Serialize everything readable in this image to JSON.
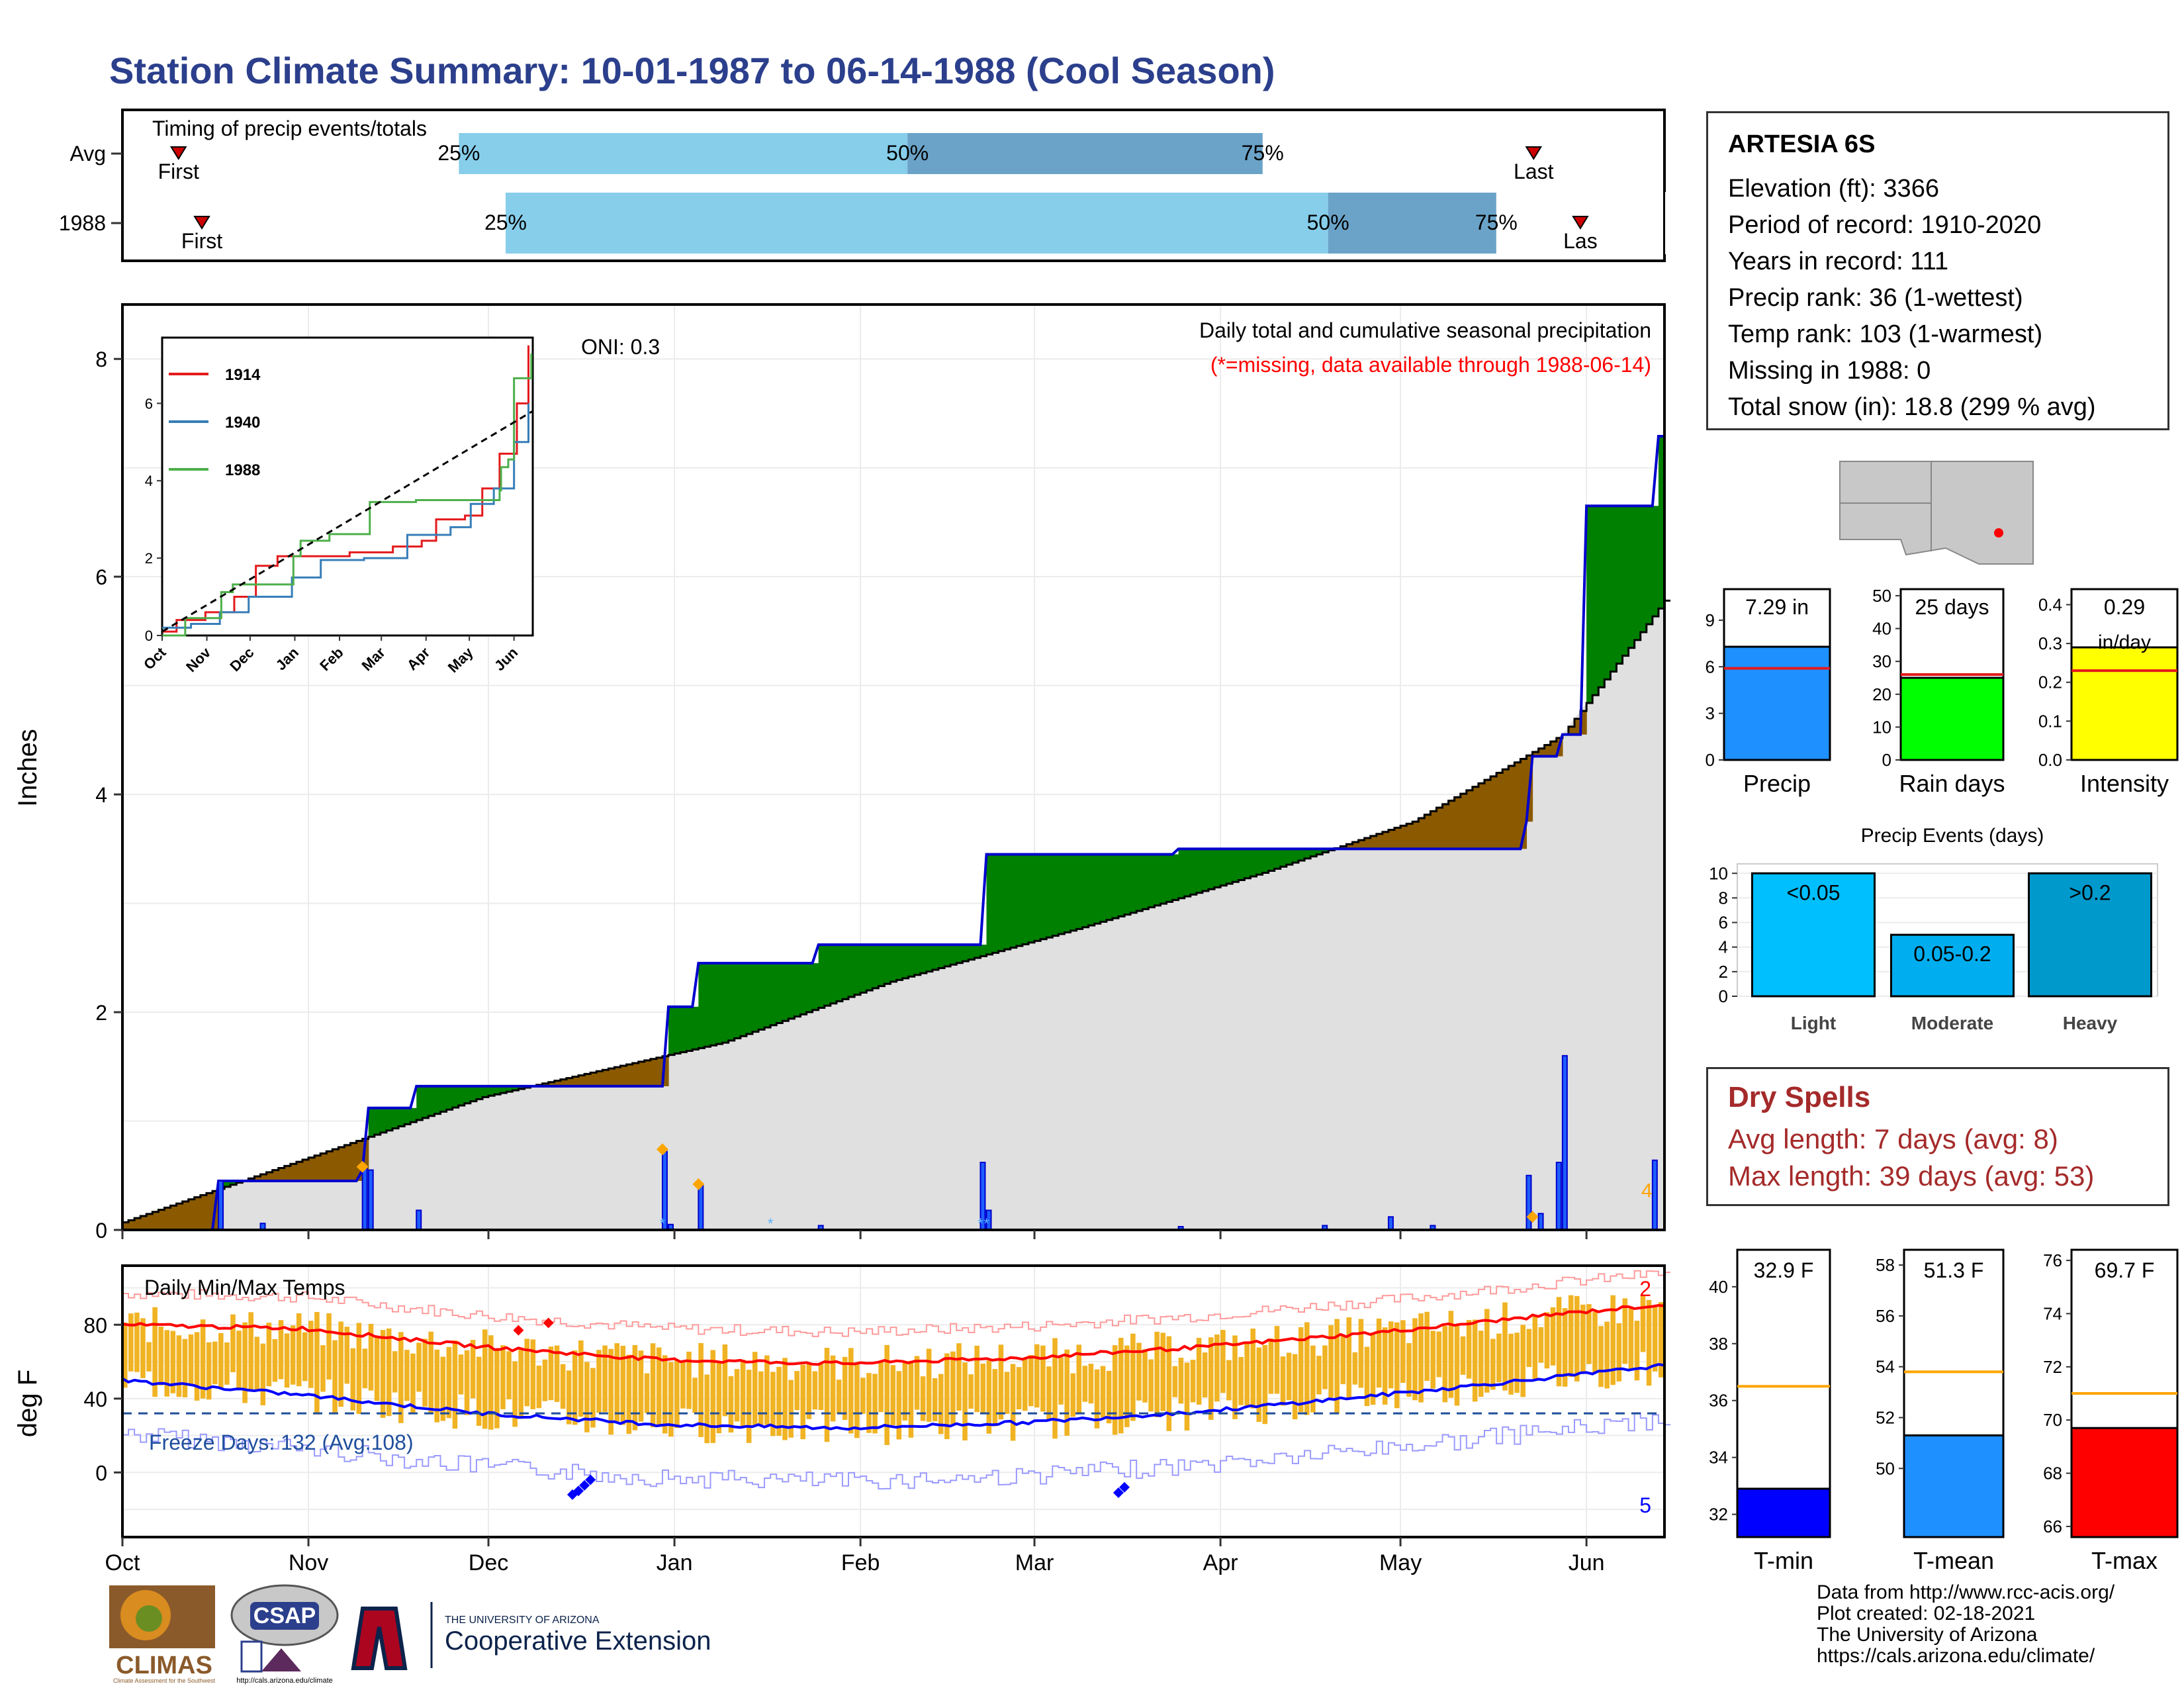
{
  "title": "Station Climate Summary: 10-01-1987 to 06-14-1988 (Cool Season)",
  "colors": {
    "title": "#2b3f8c",
    "light_blue": "#87ceeb",
    "mid_blue": "#6ba3c8",
    "green": "#008000",
    "brown": "#8b5a00",
    "gray_fill": "#e0e0e0",
    "precip_line": "#0000cd",
    "temp_bar": "#f0b323",
    "red": "#ff0000",
    "blue": "#0000ff"
  },
  "timing": {
    "label": "Timing of precip events/totals",
    "row_labels": [
      "Avg",
      "1988"
    ],
    "first_label": "First",
    "last_label": "Last",
    "last_label_clipped": "Las",
    "pct_labels": [
      "25%",
      "50%",
      "75%"
    ],
    "rows": [
      {
        "name": "Avg",
        "first_day": 12,
        "p25": 72,
        "p50": 168,
        "p75": 244,
        "last_day": 302
      },
      {
        "name": "1988",
        "first_day": 17,
        "p25": 82,
        "p50": 258,
        "p75": 294,
        "last_day": 312
      }
    ]
  },
  "precip_panel": {
    "ylabel": "Inches",
    "y_ticks": [
      "0",
      "2",
      "4",
      "6",
      "8"
    ],
    "oni_label": "ONI: 0.3",
    "caption": "Daily total and cumulative seasonal precipitation",
    "missing_note": "(*=missing, data available through 1988-06-14)",
    "x_months": [
      "Oct",
      "Nov",
      "Dec",
      "Jan",
      "Feb",
      "Mar",
      "Apr",
      "May",
      "Jun"
    ]
  },
  "inset": {
    "legend": [
      "1914",
      "1940",
      "1988"
    ],
    "legend_colors": [
      "#e41a1c",
      "#377eb8",
      "#4daf4a"
    ],
    "y_ticks": [
      "0",
      "2",
      "4",
      "6"
    ],
    "x_ticks": [
      "Oct",
      "Nov",
      "Dec",
      "Jan",
      "Feb",
      "Mar",
      "Apr",
      "May",
      "Jun"
    ]
  },
  "summary_bars": [
    {
      "name": "Precip",
      "label": "7.29 in",
      "value": 7.29,
      "avg": 5.9,
      "ymax": 11,
      "ticks": [
        "0",
        "3",
        "6",
        "9"
      ],
      "color": "#1e90ff"
    },
    {
      "name": "Rain days",
      "label": "25 days",
      "value": 25,
      "avg": 26,
      "ymax": 52,
      "ticks": [
        "0",
        "10",
        "20",
        "30",
        "40",
        "50"
      ],
      "color": "#00ff00"
    },
    {
      "name": "Intensity",
      "label": "0.29",
      "label2": "in/day",
      "value": 0.29,
      "avg": 0.23,
      "ymax": 0.44,
      "ticks": [
        "0.0",
        "0.1",
        "0.2",
        "0.3",
        "0.4"
      ],
      "color": "#ffff00"
    }
  ],
  "events": {
    "title": "Precip Events (days)",
    "ticks": [
      "0",
      "2",
      "4",
      "6",
      "8",
      "10"
    ],
    "bars": [
      {
        "category": "Light",
        "label": "<0.05",
        "value": 10,
        "color": "#00bfff"
      },
      {
        "category": "Moderate",
        "label": "0.05-0.2",
        "value": 5,
        "color": "#00aeef"
      },
      {
        "category": "Heavy",
        "label": ">0.2",
        "value": 10,
        "color": "#0099cc"
      }
    ]
  },
  "station": {
    "name": "ARTESIA 6S",
    "lines": [
      "Elevation (ft): 3366",
      "Period of record: 1910-2020",
      "Years in record: 111",
      "Precip rank: 36 (1-wettest)",
      "Temp rank: 103 (1-warmest)",
      "Missing in 1988: 0",
      "Total snow (in): 18.8 (299 % avg)"
    ]
  },
  "dry_spells": {
    "title": "Dry Spells",
    "lines": [
      "Avg length: 7 days (avg: 8)",
      "Max length: 39 days (avg: 53)"
    ]
  },
  "temp_panel": {
    "label": "Daily Min/Max Temps",
    "ylabel": "deg F",
    "y_ticks": [
      "0",
      "40",
      "80"
    ],
    "freeze_label": "Freeze Days: 132 (Avg:108)",
    "record_high_count": "2",
    "record_low_count": "5",
    "x_months": [
      "Oct",
      "Nov",
      "Dec",
      "Jan",
      "Feb",
      "Mar",
      "Apr",
      "May",
      "Jun"
    ]
  },
  "temp_bars": [
    {
      "name": "T-min",
      "label": "32.9 F",
      "value": 32.9,
      "avg": 36.5,
      "ymin": 31.2,
      "ymax": 41.3,
      "ticks": [
        "32",
        "34",
        "36",
        "38",
        "40"
      ],
      "color": "#0000ff"
    },
    {
      "name": "T-mean",
      "label": "51.3 F",
      "value": 51.3,
      "avg": 53.8,
      "ymin": 47.3,
      "ymax": 58.6,
      "ticks": [
        "50",
        "52",
        "54",
        "56",
        "58"
      ],
      "color": "#1e90ff"
    },
    {
      "name": "T-max",
      "label": "69.7 F",
      "value": 69.7,
      "avg": 71.0,
      "ymin": 65.6,
      "ymax": 76.4,
      "ticks": [
        "66",
        "68",
        "70",
        "72",
        "74",
        "76"
      ],
      "color": "#ff0000"
    }
  ],
  "logos": {
    "climas": "CLIMAS",
    "climas_sub": "Climate Assessment for the Southwest",
    "csap": "CSAP",
    "csap_url": "http://cals.arizona.edu/climate",
    "ua_small": "THE UNIVERSITY OF ARIZONA",
    "ua_big": "Cooperative Extension"
  },
  "credits": [
    "Data from http://www.rcc-acis.org/",
    "Plot created: 02-18-2021",
    "The University of Arizona",
    "https://cals.arizona.edu/climate/"
  ]
}
